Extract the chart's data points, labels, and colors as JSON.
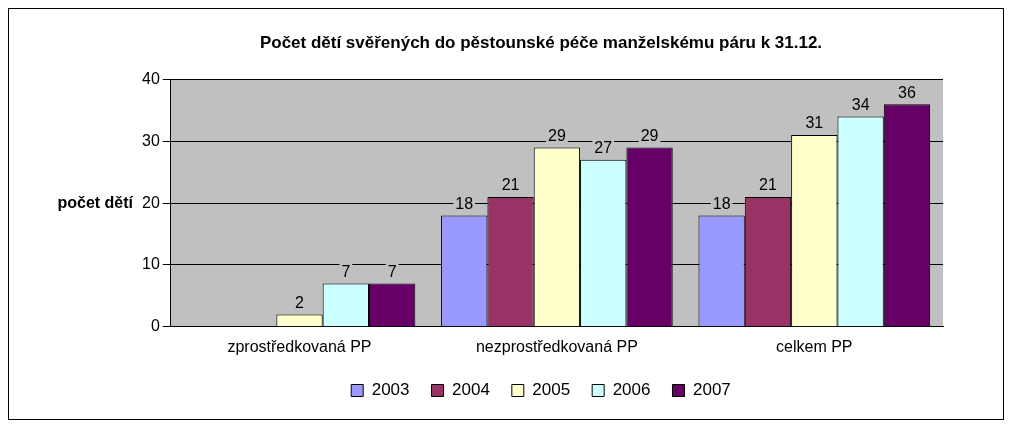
{
  "chart_data": {
    "type": "bar",
    "title": "Počet dětí svěřených do pěstounské péče manželskému páru k 31.12.",
    "ylabel": "počet dětí",
    "categories": [
      "zprostředkovaná PP",
      "nezprostředkovaná PP",
      "celkem PP"
    ],
    "series": [
      {
        "name": "2003",
        "color": "#9999ff",
        "values": [
          null,
          18,
          18
        ]
      },
      {
        "name": "2004",
        "color": "#993366",
        "values": [
          null,
          21,
          21
        ]
      },
      {
        "name": "2005",
        "color": "#ffffcc",
        "values": [
          2,
          29,
          31
        ]
      },
      {
        "name": "2006",
        "color": "#ccffff",
        "values": [
          7,
          27,
          34
        ]
      },
      {
        "name": "2007",
        "color": "#660066",
        "values": [
          7,
          29,
          36
        ]
      }
    ],
    "ylim": [
      0,
      40
    ],
    "yticks": [
      0,
      10,
      20,
      30,
      40
    ],
    "grid": "y",
    "legend": "bottom",
    "data_labels": true
  }
}
